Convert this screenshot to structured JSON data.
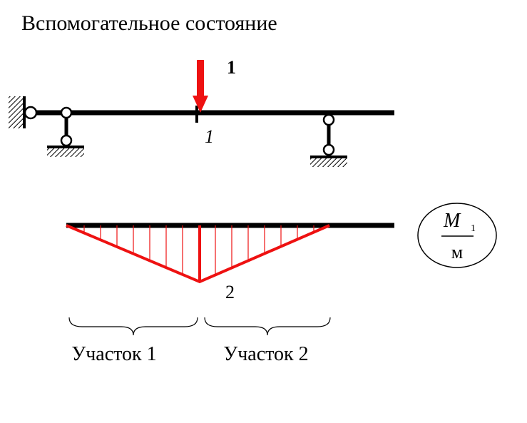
{
  "title": "Вспомогательное состояние",
  "force_label": "1",
  "point_label": "1",
  "moment_label": "2",
  "unit_badge": {
    "symbol": "M",
    "subscript": "1",
    "unit": "м"
  },
  "sections": [
    "Участок 1",
    "Участок 2"
  ]
}
